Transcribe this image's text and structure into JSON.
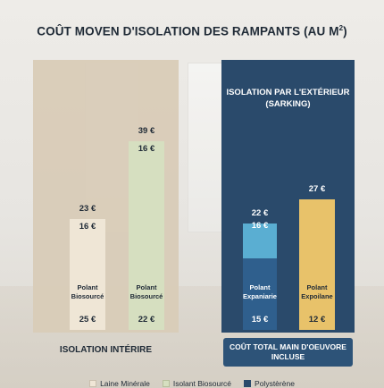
{
  "title": "COÛT MOVEN D'ISOLATION DES RAMPANTS (AU M",
  "title_sup": "2",
  "title_end": ")",
  "colors": {
    "laine_minerale": "#efe6d6",
    "isolant_biosource": "#d6dfc0",
    "polystyrene": "#2a4a6b",
    "sarking_blue": "#5aaed2",
    "sarking_yellow": "#e8c26a",
    "sarking_blue_dark": "#2f5f8d",
    "sarking_yellow_dark": "#2f5f8d"
  },
  "chart_data": {
    "type": "bar",
    "ylim": [
      0,
      40
    ],
    "groups": [
      {
        "caption": "ISOLATION INTÉRIRE",
        "bars": [
          {
            "material": "Polant Biosourcé",
            "top_label": "23 €",
            "mid_label": "16 €",
            "bottom_label": "25 €",
            "value_top": 23,
            "value_mid": 16,
            "color_key": "laine_minerale"
          },
          {
            "material": "Polant Biosourcé",
            "top_label": "39 €",
            "mid_label": "16 €",
            "bottom_label": "22 €",
            "value_top": 39,
            "value_mid": 16,
            "color_key": "isolant_biosource"
          }
        ]
      },
      {
        "title_line1": "ISOLATION PAR L'EXTÉRIEUR",
        "title_line2": "(SARKING)",
        "caption": "COÛT TOTAL MAIN D'OEUVORE INCLUSE",
        "bars": [
          {
            "material": "Polant Expaniarie",
            "top_label": "22 €",
            "mid_label": "16 €",
            "bottom_label": "15 €",
            "value_top": 22,
            "value_mid": 16,
            "color_key": "sarking_blue"
          },
          {
            "material": "Polant Expoilane",
            "top_label": "27 €",
            "mid_label": "",
            "bottom_label": "12 €",
            "value_top": 27,
            "value_mid": 0,
            "color_key": "sarking_yellow"
          }
        ]
      }
    ],
    "legend": [
      {
        "label": "Laine Minérale",
        "color_key": "laine_minerale"
      },
      {
        "label": "Isolant Biosourcé",
        "color_key": "isolant_biosource"
      },
      {
        "label": "Polystèrène",
        "color_key": "polystyrene"
      }
    ]
  }
}
